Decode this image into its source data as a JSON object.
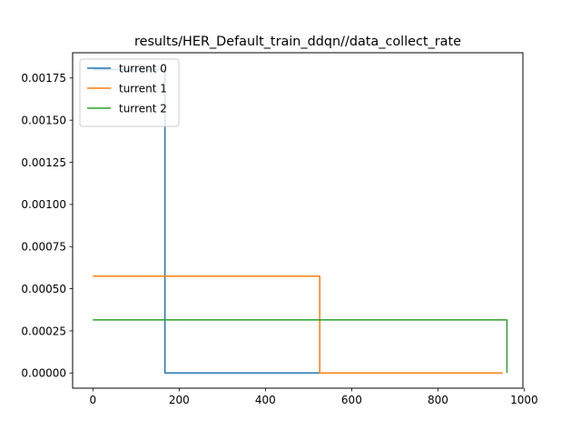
{
  "chart_data": {
    "type": "line",
    "title": "results/HER_Default_train_ddqn//data_collect_rate",
    "xlabel": "",
    "ylabel": "",
    "xlim": [
      -47,
      997
    ],
    "ylim": [
      -9e-05,
      0.0019
    ],
    "xticks": [
      0,
      200,
      400,
      600,
      800,
      1000
    ],
    "xtick_labels": [
      "0",
      "200",
      "400",
      "600",
      "800",
      "1000"
    ],
    "yticks": [
      0,
      0.00025,
      0.0005,
      0.00075,
      0.001,
      0.00125,
      0.0015,
      0.00175
    ],
    "ytick_labels": [
      "0.00000",
      "0.00025",
      "0.00050",
      "0.00075",
      "0.00100",
      "0.00125",
      "0.00150",
      "0.00175"
    ],
    "grid": false,
    "legend_position": "top-left",
    "series": [
      {
        "name": "turrent 0",
        "color": "#1f77b4",
        "x": [
          0,
          167,
          167,
          950
        ],
        "y": [
          0.0018,
          0.0018,
          0,
          0
        ]
      },
      {
        "name": "turrent 1",
        "color": "#ff7f0e",
        "x": [
          0,
          526,
          526,
          950
        ],
        "y": [
          0.000575,
          0.000575,
          0,
          0
        ]
      },
      {
        "name": "turrent 2",
        "color": "#2ca02c",
        "x": [
          0,
          960,
          960
        ],
        "y": [
          0.000315,
          0.000315,
          0
        ]
      }
    ]
  }
}
